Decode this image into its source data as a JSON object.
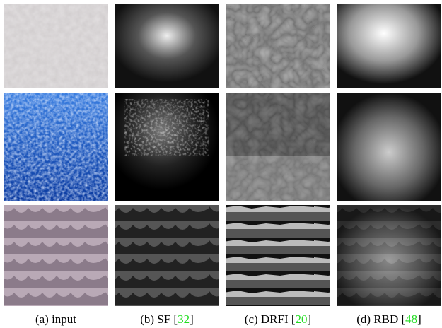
{
  "captions": [
    {
      "text": "(a) input"
    },
    {
      "text": "(b) SF [",
      "ref": "32",
      "end": "]"
    },
    {
      "text": "(c) DRFI [",
      "ref": "20",
      "end": "]"
    },
    {
      "text": "(d) RBD [",
      "ref": "48",
      "end": "]"
    }
  ]
}
